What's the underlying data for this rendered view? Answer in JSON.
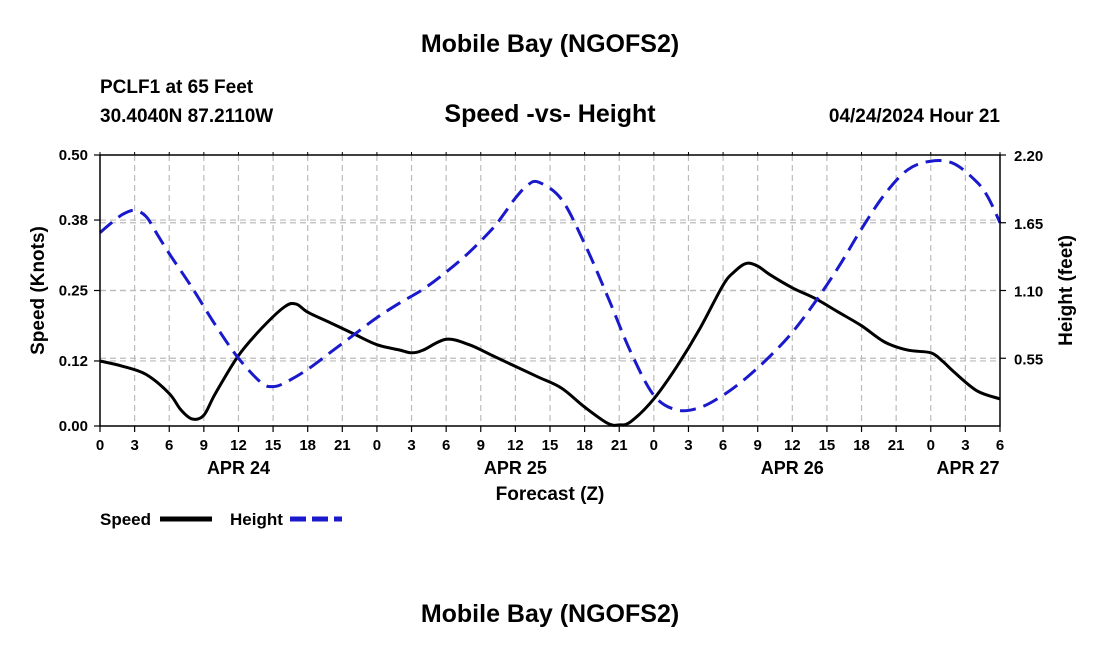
{
  "header": {
    "title": "Mobile Bay (NGOFS2)",
    "station": "PCLF1 at 65 Feet",
    "coords": "30.4040N  87.2110W",
    "subtitle": "Speed -vs- Height",
    "datetime": "04/24/2024 Hour 21"
  },
  "footer": {
    "title": "Mobile Bay (NGOFS2)"
  },
  "colors": {
    "speed": "#000000",
    "height": "#1a1acc",
    "grid": "#bbbbbb"
  },
  "chart_data": {
    "type": "line",
    "title": "Speed -vs- Height",
    "xlabel": "Forecast (Z)",
    "ylabel": "Speed (Knots)",
    "y2label": "Height (feet)",
    "xlim": [
      0,
      78
    ],
    "ylim": [
      0,
      0.5
    ],
    "y2lim": [
      0,
      2.2
    ],
    "x_ticks": [
      0,
      3,
      6,
      9,
      12,
      15,
      18,
      21,
      24,
      27,
      30,
      33,
      36,
      39,
      42,
      45,
      48,
      51,
      54,
      57,
      60,
      63,
      66,
      69,
      72,
      75,
      78
    ],
    "x_tick_labels": [
      "0",
      "3",
      "6",
      "9",
      "12",
      "15",
      "18",
      "21",
      "0",
      "3",
      "6",
      "9",
      "12",
      "15",
      "18",
      "21",
      "0",
      "3",
      "6",
      "9",
      "12",
      "15",
      "18",
      "21",
      "0",
      "3",
      "6"
    ],
    "y_ticks": [
      0.0,
      0.12,
      0.25,
      0.38,
      0.5
    ],
    "y_tick_labels": [
      "0.00",
      "0.12",
      "0.25",
      "0.38",
      "0.50"
    ],
    "y2_ticks": [
      0.55,
      1.1,
      1.65,
      2.2
    ],
    "y2_tick_labels": [
      "0.55",
      "1.10",
      "1.65",
      "2.20"
    ],
    "date_labels": [
      {
        "x": 12,
        "label": "APR 24"
      },
      {
        "x": 36,
        "label": "APR 25"
      },
      {
        "x": 60,
        "label": "APR 26"
      },
      {
        "x": 78,
        "label": "APR 27"
      }
    ],
    "legend": [
      {
        "name": "Speed",
        "style": "solid"
      },
      {
        "name": "Height",
        "style": "dashed"
      }
    ],
    "series": [
      {
        "name": "Speed",
        "axis": "left",
        "x": [
          0,
          2,
          4,
          6,
          7,
          8,
          9,
          10,
          12,
          14,
          16,
          17,
          18,
          20,
          22,
          24,
          26,
          27,
          28,
          30,
          32,
          34,
          36,
          38,
          40,
          42,
          44,
          45,
          46,
          48,
          50,
          52,
          54,
          55,
          56,
          57,
          58,
          60,
          62,
          64,
          66,
          68,
          70,
          72,
          73,
          74,
          76,
          78
        ],
        "y": [
          0.12,
          0.11,
          0.095,
          0.06,
          0.03,
          0.013,
          0.02,
          0.06,
          0.13,
          0.18,
          0.22,
          0.225,
          0.21,
          0.19,
          0.17,
          0.15,
          0.14,
          0.135,
          0.14,
          0.16,
          0.15,
          0.13,
          0.11,
          0.09,
          0.07,
          0.035,
          0.005,
          0.002,
          0.008,
          0.05,
          0.11,
          0.18,
          0.26,
          0.285,
          0.3,
          0.295,
          0.28,
          0.255,
          0.235,
          0.21,
          0.185,
          0.155,
          0.14,
          0.135,
          0.12,
          0.1,
          0.065,
          0.05
        ]
      },
      {
        "name": "Height",
        "axis": "right",
        "x": [
          0,
          1,
          2,
          3,
          4,
          5,
          6,
          8,
          10,
          12,
          14,
          15,
          16,
          18,
          20,
          22,
          24,
          26,
          28,
          30,
          32,
          34,
          35,
          36,
          37,
          38,
          40,
          42,
          44,
          46,
          48,
          50,
          52,
          54,
          56,
          58,
          60,
          62,
          64,
          66,
          68,
          70,
          72,
          74,
          76,
          77,
          78
        ],
        "y": [
          1.57,
          1.65,
          1.72,
          1.75,
          1.7,
          1.55,
          1.4,
          1.12,
          0.82,
          0.55,
          0.35,
          0.32,
          0.35,
          0.46,
          0.6,
          0.74,
          0.88,
          1.0,
          1.11,
          1.25,
          1.41,
          1.6,
          1.72,
          1.85,
          1.95,
          1.98,
          1.84,
          1.48,
          1.05,
          0.6,
          0.25,
          0.13,
          0.15,
          0.25,
          0.39,
          0.56,
          0.76,
          1.01,
          1.29,
          1.6,
          1.88,
          2.08,
          2.15,
          2.13,
          1.98,
          1.85,
          1.65
        ]
      }
    ]
  }
}
